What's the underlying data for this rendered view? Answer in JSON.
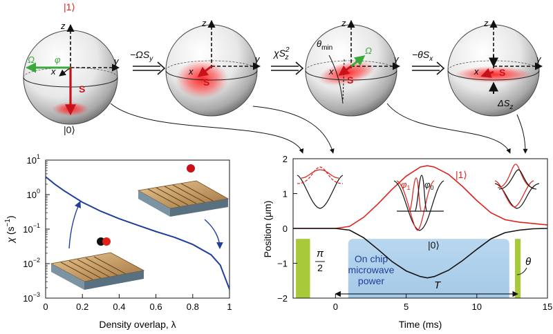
{
  "spheres": {
    "s1": {
      "ket_top": "|1⟩",
      "ket_bottom": "|0⟩",
      "z": "z",
      "x": "x",
      "y": "y",
      "omega": "Ω",
      "phi": "φ",
      "spin": "S"
    },
    "s2": {
      "z": "z",
      "x": "x",
      "y": "y",
      "spin": "S"
    },
    "s3": {
      "z": "z",
      "x": "x",
      "y": "y",
      "spin": "S",
      "omega": "Ω",
      "theta_min": "θ",
      "theta_min_sub": "min"
    },
    "s4": {
      "z": "z",
      "x": "x",
      "y": "y",
      "spin": "S",
      "delta": "ΔS",
      "delta_sub": "z"
    }
  },
  "operations": {
    "op1": {
      "prefix": "−ΩS",
      "sub": "y"
    },
    "op2": {
      "prefix": "χS",
      "sup": "2",
      "sub": "z"
    },
    "op3": {
      "prefix": "−θS",
      "sub": "x"
    }
  },
  "left_plot": {
    "ylabel_sym": "χ",
    "ylabel_unit": "(s",
    "ylabel_unit_sup": "−1",
    "ylabel_unit_end": ")",
    "xlabel": "Density overlap, λ",
    "yticks": [
      {
        "base": "10",
        "exp": "1"
      },
      {
        "base": "10",
        "exp": "0"
      },
      {
        "base": "10",
        "exp": "−1"
      },
      {
        "base": "10",
        "exp": "−2"
      },
      {
        "base": "10",
        "exp": "−3"
      }
    ],
    "xticks": [
      "0",
      "0.2",
      "0.4",
      "0.6",
      "0.8",
      "1"
    ]
  },
  "right_plot": {
    "ylabel": "Position (μm)",
    "xlabel": "Time (ms)",
    "yticks": [
      "2",
      "1",
      "0",
      "−1",
      "−2"
    ],
    "xticks": [
      "0",
      "5",
      "10",
      "15"
    ],
    "ket1": "|1⟩",
    "ket0": "|0⟩",
    "phi1": "φ",
    "phi1_sub": "1",
    "phi0": "φ",
    "phi0_sub": "0",
    "pulse_num": "π",
    "pulse_den": "2",
    "theta": "θ",
    "microwave": [
      "On chip",
      "microwave",
      "power"
    ],
    "duration": "T"
  },
  "colors": {
    "red": "#e0201b",
    "green": "#3aa83a",
    "blue": "#1f3f9a",
    "lime": "#a8c93a",
    "lightblue": "#a6cbe8"
  },
  "chart_data": [
    {
      "type": "line",
      "title": "",
      "xlabel": "Density overlap, λ",
      "ylabel": "χ (s−1)",
      "yscale": "log",
      "xlim": [
        0,
        1
      ],
      "ylim": [
        0.001,
        10
      ],
      "series": [
        {
          "name": "chi",
          "x": [
            0.0,
            0.05,
            0.1,
            0.2,
            0.3,
            0.4,
            0.5,
            0.6,
            0.7,
            0.8,
            0.9,
            0.95,
            1.0
          ],
          "y": [
            3.3,
            2.0,
            1.3,
            0.6,
            0.33,
            0.2,
            0.13,
            0.085,
            0.058,
            0.036,
            0.018,
            0.009,
            0.0018
          ]
        }
      ]
    },
    {
      "type": "line",
      "title": "",
      "xlabel": "Time (ms)",
      "ylabel": "Position (μm)",
      "xlim": [
        -3,
        15
      ],
      "ylim": [
        -2,
        2
      ],
      "series": [
        {
          "name": "|1⟩",
          "x": [
            -3,
            0,
            1,
            2,
            3,
            4,
            5,
            6,
            6.5,
            7,
            8,
            9,
            10,
            11,
            12,
            13,
            14,
            15
          ],
          "y": [
            0,
            0,
            0.06,
            0.32,
            0.7,
            1.12,
            1.5,
            1.76,
            1.8,
            1.76,
            1.55,
            1.2,
            0.8,
            0.45,
            0.25,
            0.18,
            0.14,
            0.1
          ]
        },
        {
          "name": "|0⟩",
          "x": [
            -3,
            0,
            1,
            2,
            3,
            4,
            5,
            6,
            6.5,
            7,
            8,
            9,
            10,
            11,
            12,
            13,
            14,
            15
          ],
          "y": [
            0,
            0,
            -0.05,
            -0.27,
            -0.6,
            -0.95,
            -1.22,
            -1.38,
            -1.42,
            -1.38,
            -1.2,
            -0.92,
            -0.6,
            -0.3,
            -0.12,
            -0.05,
            -0.01,
            0
          ]
        }
      ]
    }
  ]
}
